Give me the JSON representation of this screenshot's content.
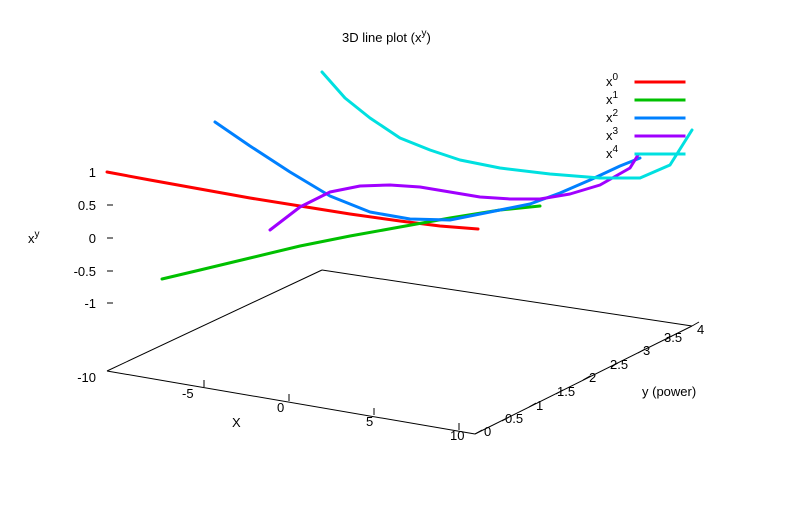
{
  "chart_data": {
    "type": "line",
    "title": "3D line plot (x",
    "title_sup": "y",
    "title_tail": ")",
    "xlabel": "X",
    "ylabel": "y (power)",
    "zlabel": "x",
    "zlabel_sup": "y",
    "x_ticks": [
      {
        "value": -5,
        "label": "-5"
      },
      {
        "value": 0,
        "label": "0"
      },
      {
        "value": 5,
        "label": "5"
      },
      {
        "value": 10,
        "label": "10"
      }
    ],
    "y_ticks": [
      {
        "value": 0,
        "label": "0"
      },
      {
        "value": 0.5,
        "label": "0.5"
      },
      {
        "value": 1,
        "label": "1"
      },
      {
        "value": 1.5,
        "label": "1.5"
      },
      {
        "value": 2,
        "label": "2"
      },
      {
        "value": 2.5,
        "label": "2.5"
      },
      {
        "value": 3,
        "label": "3"
      },
      {
        "value": 3.5,
        "label": "3.5"
      },
      {
        "value": 4,
        "label": "4"
      }
    ],
    "z_ticks": [
      {
        "value": 1,
        "label": "1"
      },
      {
        "value": 0.5,
        "label": "0.5"
      },
      {
        "value": 0,
        "label": "0"
      },
      {
        "value": -0.5,
        "label": "-0.5"
      },
      {
        "value": -1,
        "label": "-1"
      }
    ],
    "z_base_label": "-10",
    "grid": false,
    "legend_position": "top-right",
    "series": [
      {
        "name": "x",
        "sup": "0",
        "color": "#ff0000",
        "points": [
          [
            107,
            172
          ],
          [
            150,
            180
          ],
          [
            200,
            189
          ],
          [
            250,
            198
          ],
          [
            300,
            206
          ],
          [
            350,
            214
          ],
          [
            400,
            221
          ],
          [
            440,
            226
          ],
          [
            478,
            229
          ]
        ]
      },
      {
        "name": "x",
        "sup": "1",
        "color": "#00c000",
        "points": [
          [
            162,
            279
          ],
          [
            200,
            270
          ],
          [
            250,
            258
          ],
          [
            300,
            246
          ],
          [
            350,
            236
          ],
          [
            400,
            227
          ],
          [
            450,
            218
          ],
          [
            500,
            210
          ],
          [
            540,
            206
          ]
        ]
      },
      {
        "name": "x",
        "sup": "2",
        "color": "#0080ff",
        "points": [
          [
            215,
            122
          ],
          [
            250,
            146
          ],
          [
            290,
            172
          ],
          [
            330,
            196
          ],
          [
            370,
            212
          ],
          [
            410,
            219
          ],
          [
            450,
            220
          ],
          [
            490,
            212
          ],
          [
            530,
            204
          ],
          [
            560,
            193
          ],
          [
            590,
            180
          ],
          [
            620,
            166
          ],
          [
            640,
            158
          ]
        ]
      },
      {
        "name": "x",
        "sup": "3",
        "color": "#a000ff",
        "points": [
          [
            270,
            230
          ],
          [
            300,
            207
          ],
          [
            330,
            192
          ],
          [
            360,
            186
          ],
          [
            390,
            185
          ],
          [
            420,
            187
          ],
          [
            450,
            192
          ],
          [
            480,
            197
          ],
          [
            510,
            199
          ],
          [
            540,
            199
          ],
          [
            570,
            194
          ],
          [
            600,
            185
          ],
          [
            630,
            168
          ],
          [
            638,
            155
          ]
        ]
      },
      {
        "name": "x",
        "sup": "4",
        "color": "#00e0e0",
        "points": [
          [
            322,
            72
          ],
          [
            345,
            98
          ],
          [
            370,
            118
          ],
          [
            400,
            138
          ],
          [
            430,
            150
          ],
          [
            460,
            160
          ],
          [
            500,
            168
          ],
          [
            550,
            174
          ],
          [
            600,
            178
          ],
          [
            640,
            178
          ],
          [
            670,
            165
          ],
          [
            692,
            130
          ]
        ]
      }
    ]
  }
}
